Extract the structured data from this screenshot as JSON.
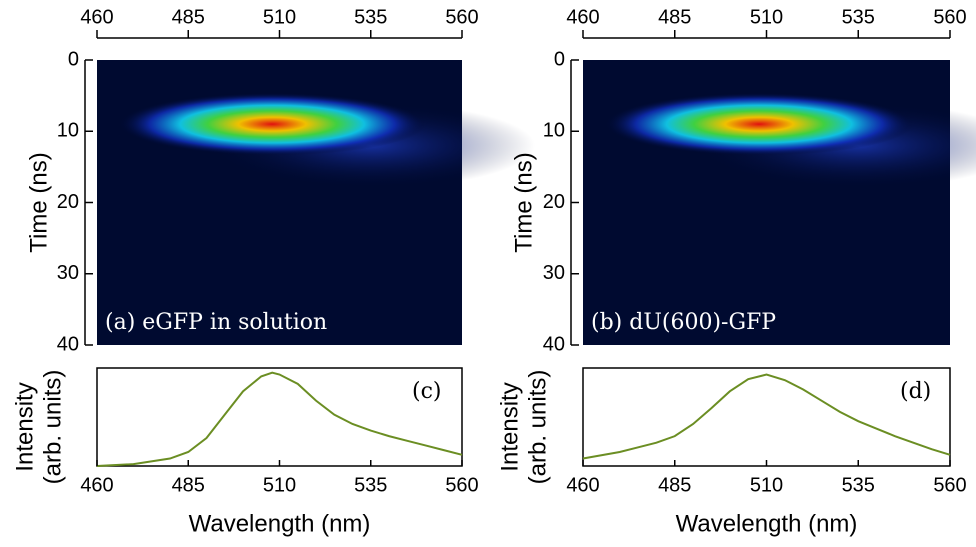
{
  "chart_data": [
    {
      "type": "heatmap",
      "annotation": "(a) eGFP in solution",
      "ylabel": "Time (ns)",
      "xlim": [
        460,
        560
      ],
      "xticks": [
        460,
        485,
        510,
        535,
        560
      ],
      "ylim": [
        0,
        40
      ],
      "yticks": [
        0,
        10,
        20,
        30,
        40
      ],
      "invert_y": true
    },
    {
      "type": "heatmap",
      "annotation": "(b) dU(600)-GFP",
      "ylabel": "Time (ns)",
      "xlim": [
        460,
        560
      ],
      "xticks": [
        460,
        485,
        510,
        535,
        560
      ],
      "ylim": [
        0,
        40
      ],
      "yticks": [
        0,
        10,
        20,
        30,
        40
      ],
      "invert_y": true
    },
    {
      "type": "line",
      "annotation": "(c)",
      "ylabel": [
        "Intensity",
        "(arb. units)"
      ],
      "xlabel": "Wavelength (nm)",
      "xlim": [
        460,
        560
      ],
      "xticks": [
        460,
        485,
        510,
        535,
        560
      ],
      "ylim": [
        0,
        1.05
      ],
      "x": [
        460,
        470,
        480,
        485,
        490,
        495,
        500,
        505,
        508,
        510,
        515,
        520,
        525,
        530,
        535,
        540,
        545,
        550,
        555,
        560
      ],
      "series": [
        {
          "color": "#6b8e23",
          "values": [
            0.0,
            0.02,
            0.08,
            0.15,
            0.3,
            0.55,
            0.8,
            0.96,
            1.0,
            0.98,
            0.88,
            0.7,
            0.55,
            0.45,
            0.38,
            0.32,
            0.27,
            0.22,
            0.17,
            0.12
          ]
        }
      ]
    },
    {
      "type": "line",
      "annotation": "(d)",
      "ylabel": [
        "Intensity",
        "(arb. units)"
      ],
      "xlabel": "Wavelength (nm)",
      "xlim": [
        460,
        560
      ],
      "xticks": [
        460,
        485,
        510,
        535,
        560
      ],
      "ylim": [
        0,
        1.05
      ],
      "x": [
        460,
        470,
        480,
        485,
        490,
        495,
        500,
        505,
        510,
        515,
        520,
        525,
        530,
        535,
        540,
        545,
        550,
        555,
        560
      ],
      "series": [
        {
          "color": "#6b8e23",
          "values": [
            0.08,
            0.15,
            0.25,
            0.32,
            0.45,
            0.62,
            0.8,
            0.93,
            0.98,
            0.92,
            0.82,
            0.7,
            0.58,
            0.48,
            0.4,
            0.32,
            0.25,
            0.18,
            0.12
          ]
        }
      ]
    }
  ]
}
